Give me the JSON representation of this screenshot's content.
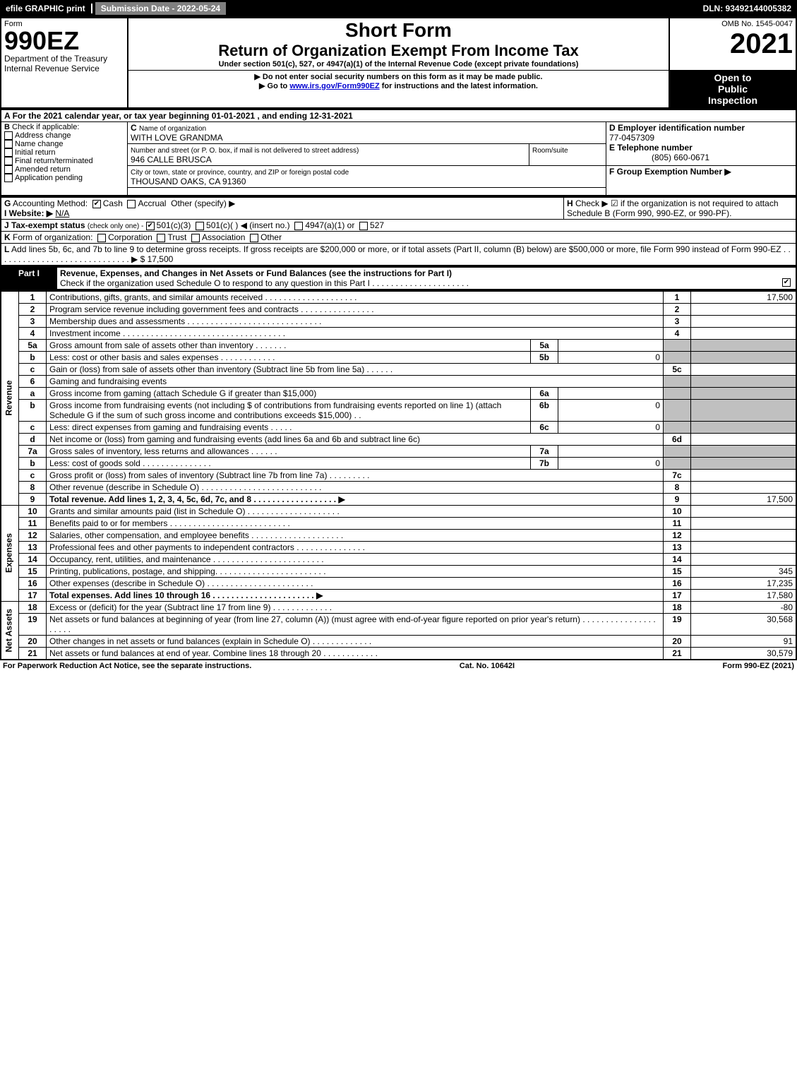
{
  "topbar": {
    "efile": "efile GRAPHIC print",
    "submission": "Submission Date - 2022-05-24",
    "dln": "DLN: 93492144005382"
  },
  "header": {
    "form_word": "Form",
    "form_no": "990EZ",
    "dept": "Department of the Treasury\nInternal Revenue Service",
    "short_form": "Short Form",
    "return_title": "Return of Organization Exempt From Income Tax",
    "under_section": "Under section 501(c), 527, or 4947(a)(1) of the Internal Revenue Code (except private foundations)",
    "no_ssn": "▶ Do not enter social security numbers on this form as it may be made public.",
    "goto": "▶ Go to ",
    "goto_url": "www.irs.gov/Form990EZ",
    "goto_suffix": " for instructions and the latest information.",
    "omb": "OMB No. 1545-0047",
    "year": "2021",
    "open1": "Open to",
    "open2": "Public",
    "open3": "Inspection"
  },
  "sectionA": {
    "a_label": "A",
    "a_text": "For the 2021 calendar year, or tax year beginning 01-01-2021 , and ending 12-31-2021",
    "b_label": "B",
    "b_text": "Check if applicable:",
    "b_items": [
      "Address change",
      "Name change",
      "Initial return",
      "Final return/terminated",
      "Amended return",
      "Application pending"
    ],
    "c_label": "C",
    "c_name_label": "Name of organization",
    "c_name": "WITH LOVE GRANDMA",
    "c_street_label": "Number and street (or P. O. box, if mail is not delivered to street address)",
    "c_room_label": "Room/suite",
    "c_street": "946 CALLE BRUSCA",
    "c_city_label": "City or town, state or province, country, and ZIP or foreign postal code",
    "c_city": "THOUSAND OAKS, CA  91360",
    "d_label": "D Employer identification number",
    "d_ein": "77-0457309",
    "e_label": "E Telephone number",
    "e_phone": "(805) 660-0671",
    "f_label": "F Group Exemption Number ▶",
    "g_label": "G",
    "g_text": "Accounting Method:",
    "g_cash": "Cash",
    "g_accrual": "Accrual",
    "g_other": "Other (specify) ▶",
    "h_label": "H",
    "h_text": "Check ▶ ☑ if the organization is not required to attach Schedule B (Form 990, 990-EZ, or 990-PF).",
    "i_label": "I Website: ▶",
    "i_value": "N/A",
    "j_label": "J Tax-exempt status",
    "j_sub": "(check only one) -",
    "j_501c3": "501(c)(3)",
    "j_501c": "501(c)(  )",
    "j_insert": "◀ (insert no.)",
    "j_4947": "4947(a)(1) or",
    "j_527": "527",
    "k_label": "K",
    "k_text": "Form of organization:",
    "k_items": [
      "Corporation",
      "Trust",
      "Association",
      "Other"
    ],
    "l_label": "L",
    "l_text": "Add lines 5b, 6c, and 7b to line 9 to determine gross receipts. If gross receipts are $200,000 or more, or if total assets (Part II, column (B) below) are $500,000 or more, file Form 990 instead of Form 990-EZ .  .  .  .  .  .  .  .  .  .  .  .  .  .  .  .  .  .  .  .  .  .  .  .  .  .  .  .  . ▶ $ 17,500"
  },
  "partI": {
    "header": "Part I",
    "title": "Revenue, Expenses, and Changes in Net Assets or Fund Balances (see the instructions for Part I)",
    "check_text": "Check if the organization used Schedule O to respond to any question in this Part I .  .  .  .  .  .  .  .  .  .  .  .  .  .  .  .  .  .  .  .  ."
  },
  "sections": {
    "revenue": "Revenue",
    "expenses": "Expenses",
    "netassets": "Net Assets"
  },
  "lines": [
    {
      "no": "1",
      "desc": "Contributions, gifts, grants, and similar amounts received .  .  .  .  .  .  .  .  .  .  .  .  .  .  .  .  .  .  .  .",
      "box": "1",
      "val": "17,500"
    },
    {
      "no": "2",
      "desc": "Program service revenue including government fees and contracts .  .  .  .  .  .  .  .  .  .  .  .  .  .  .  .",
      "box": "2",
      "val": ""
    },
    {
      "no": "3",
      "desc": "Membership dues and assessments .  .  .  .  .  .  .  .  .  .  .  .  .  .  .  .  .  .  .  .  .  .  .  .  .  .  .  .  .",
      "box": "3",
      "val": ""
    },
    {
      "no": "4",
      "desc": "Investment income .  .  .  .  .  .  .  .  .  .  .  .  .  .  .  .  .  .  .  .  .  .  .  .  .  .  .  .  .  .  .  .  .  .  .",
      "box": "4",
      "val": ""
    },
    {
      "no": "5a",
      "desc": "Gross amount from sale of assets other than inventory .  .  .  .  .  .  .",
      "sub_box": "5a",
      "sub_val": "",
      "box": "",
      "val": "",
      "shaded": true
    },
    {
      "no": "b",
      "desc": "Less: cost or other basis and sales expenses .  .  .  .  .  .  .  .  .  .  .  .",
      "sub_box": "5b",
      "sub_val": "0",
      "box": "",
      "val": "",
      "shaded": true
    },
    {
      "no": "c",
      "desc": "Gain or (loss) from sale of assets other than inventory (Subtract line 5b from line 5a) .  .  .  .  .  .",
      "box": "5c",
      "val": ""
    },
    {
      "no": "6",
      "desc": "Gaming and fundraising events",
      "box": "",
      "val": "",
      "shaded": true
    },
    {
      "no": "a",
      "desc": "Gross income from gaming (attach Schedule G if greater than $15,000)",
      "sub_box": "6a",
      "sub_val": "",
      "box": "",
      "val": "",
      "shaded": true
    },
    {
      "no": "b",
      "desc": "Gross income from fundraising events (not including $                    of contributions from fundraising events reported on line 1) (attach Schedule G if the sum of such gross income and contributions exceeds $15,000)   .  .",
      "sub_box": "6b",
      "sub_val": "0",
      "box": "",
      "val": "",
      "shaded": true
    },
    {
      "no": "c",
      "desc": "Less: direct expenses from gaming and fundraising events  .  .  .  .  .",
      "sub_box": "6c",
      "sub_val": "0",
      "box": "",
      "val": "",
      "shaded": true
    },
    {
      "no": "d",
      "desc": "Net income or (loss) from gaming and fundraising events (add lines 6a and 6b and subtract line 6c)",
      "box": "6d",
      "val": ""
    },
    {
      "no": "7a",
      "desc": "Gross sales of inventory, less returns and allowances .  .  .  .  .  .",
      "sub_box": "7a",
      "sub_val": "",
      "box": "",
      "val": "",
      "shaded": true
    },
    {
      "no": "b",
      "desc": "Less: cost of goods sold    .  .  .  .  .  .  .  .  .  .  .  .  .  .  .",
      "sub_box": "7b",
      "sub_val": "0",
      "box": "",
      "val": "",
      "shaded": true
    },
    {
      "no": "c",
      "desc": "Gross profit or (loss) from sales of inventory (Subtract line 7b from line 7a) .  .  .  .  .  .  .  .  .",
      "box": "7c",
      "val": ""
    },
    {
      "no": "8",
      "desc": "Other revenue (describe in Schedule O) .  .  .  .  .  .  .  .  .  .  .  .  .  .  .  .  .  .  .  .  .  .  .  .  .  .",
      "box": "8",
      "val": ""
    },
    {
      "no": "9",
      "desc": "Total revenue. Add lines 1, 2, 3, 4, 5c, 6d, 7c, and 8  .  .  .  .  .  .  .  .  .  .  .  .  .  .  .  .  .  . ▶",
      "box": "9",
      "val": "17,500",
      "bold": true
    }
  ],
  "expense_lines": [
    {
      "no": "10",
      "desc": "Grants and similar amounts paid (list in Schedule O) .  .  .  .  .  .  .  .  .  .  .  .  .  .  .  .  .  .  .  .",
      "box": "10",
      "val": ""
    },
    {
      "no": "11",
      "desc": "Benefits paid to or for members    .  .  .  .  .  .  .  .  .  .  .  .  .  .  .  .  .  .  .  .  .  .  .  .  .  .",
      "box": "11",
      "val": ""
    },
    {
      "no": "12",
      "desc": "Salaries, other compensation, and employee benefits .  .  .  .  .  .  .  .  .  .  .  .  .  .  .  .  .  .  .  .",
      "box": "12",
      "val": ""
    },
    {
      "no": "13",
      "desc": "Professional fees and other payments to independent contractors .  .  .  .  .  .  .  .  .  .  .  .  .  .  .",
      "box": "13",
      "val": ""
    },
    {
      "no": "14",
      "desc": "Occupancy, rent, utilities, and maintenance .  .  .  .  .  .  .  .  .  .  .  .  .  .  .  .  .  .  .  .  .  .  .  .",
      "box": "14",
      "val": ""
    },
    {
      "no": "15",
      "desc": "Printing, publications, postage, and shipping.  .  .  .  .  .  .  .  .  .  .  .  .  .  .  .  .  .  .  .  .  .  .  .",
      "box": "15",
      "val": "345"
    },
    {
      "no": "16",
      "desc": "Other expenses (describe in Schedule O)    .  .  .  .  .  .  .  .  .  .  .  .  .  .  .  .  .  .  .  .  .  .  .",
      "box": "16",
      "val": "17,235"
    },
    {
      "no": "17",
      "desc": "Total expenses. Add lines 10 through 16    .  .  .  .  .  .  .  .  .  .  .  .  .  .  .  .  .  .  .  .  .  . ▶",
      "box": "17",
      "val": "17,580",
      "bold": true
    }
  ],
  "net_lines": [
    {
      "no": "18",
      "desc": "Excess or (deficit) for the year (Subtract line 17 from line 9)      .  .  .  .  .  .  .  .  .  .  .  .  .",
      "box": "18",
      "val": "-80"
    },
    {
      "no": "19",
      "desc": "Net assets or fund balances at beginning of year (from line 27, column (A)) (must agree with end-of-year figure reported on prior year's return) .  .  .  .  .  .  .  .  .  .  .  .  .  .  .  .  .  .  .  .  .",
      "box": "19",
      "val": "30,568"
    },
    {
      "no": "20",
      "desc": "Other changes in net assets or fund balances (explain in Schedule O) .  .  .  .  .  .  .  .  .  .  .  .  .",
      "box": "20",
      "val": "91"
    },
    {
      "no": "21",
      "desc": "Net assets or fund balances at end of year. Combine lines 18 through 20 .  .  .  .  .  .  .  .  .  .  .  .",
      "box": "21",
      "val": "30,579"
    }
  ],
  "footer": {
    "paperwork": "For Paperwork Reduction Act Notice, see the separate instructions.",
    "cat": "Cat. No. 10642I",
    "form": "Form 990-EZ (2021)"
  }
}
